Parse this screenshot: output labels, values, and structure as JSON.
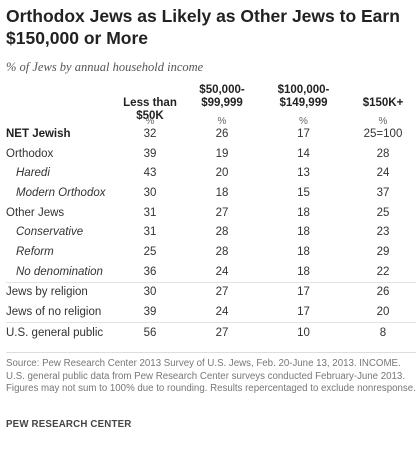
{
  "title": "Orthodox Jews as Likely as Other Jews to Earn $150,000 or More",
  "subtitle": "% of Jews by annual household income",
  "chart_data": {
    "type": "table",
    "title": "Orthodox Jews as Likely as Other Jews to Earn $150,000 or More",
    "subtitle": "% of Jews by annual household income",
    "columns": [
      "Less than $50K",
      "$50,000-\n$99,999",
      "$100,000-\n$149,999",
      "$150K+"
    ],
    "unit_row": [
      "%",
      "%",
      "%",
      "%"
    ],
    "rows": [
      {
        "label": "NET Jewish",
        "values": [
          "32",
          "26",
          "17",
          "25=100"
        ]
      },
      {
        "label": "Orthodox",
        "values": [
          "39",
          "19",
          "14",
          "28"
        ]
      },
      {
        "label": "Haredi",
        "values": [
          "43",
          "20",
          "13",
          "24"
        ]
      },
      {
        "label": "Modern Orthodox",
        "values": [
          "30",
          "18",
          "15",
          "37"
        ]
      },
      {
        "label": "Other Jews",
        "values": [
          "31",
          "27",
          "18",
          "25"
        ]
      },
      {
        "label": "Conservative",
        "values": [
          "31",
          "28",
          "18",
          "23"
        ]
      },
      {
        "label": "Reform",
        "values": [
          "25",
          "28",
          "18",
          "29"
        ]
      },
      {
        "label": "No denomination",
        "values": [
          "36",
          "24",
          "18",
          "22"
        ]
      },
      {
        "label": "Jews by religion",
        "values": [
          "30",
          "27",
          "17",
          "26"
        ]
      },
      {
        "label": "Jews of no religion",
        "values": [
          "39",
          "24",
          "17",
          "20"
        ]
      },
      {
        "label": "U.S. general public",
        "values": [
          "56",
          "27",
          "10",
          "8"
        ]
      }
    ]
  },
  "footer": {
    "source": "Source: Pew Research Center 2013 Survey of U.S. Jews, Feb. 20-June 13, 2013. INCOME. U.S. general public data from Pew Research Center surveys conducted February-June 2013. Figures may not sum to 100% due to rounding. Results repercentaged to exclude nonresponse.",
    "brand": "PEW RESEARCH CENTER"
  }
}
